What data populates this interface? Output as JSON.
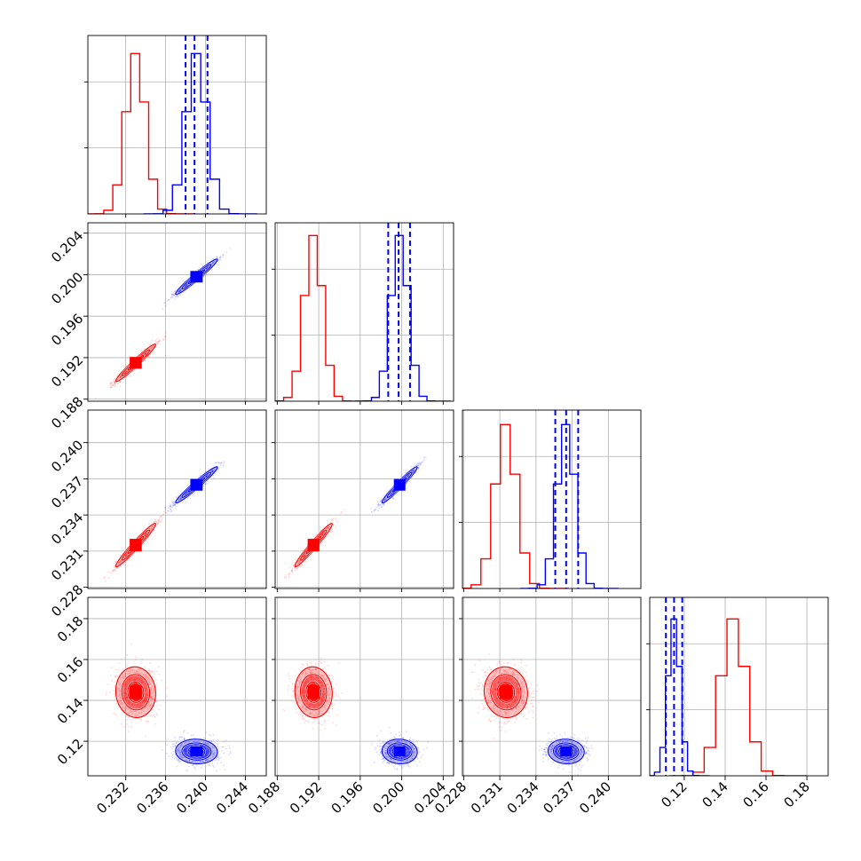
{
  "chart_data": {
    "type": "corner",
    "parameters": [
      {
        "ticks": [
          0.232,
          0.236,
          0.24,
          0.244
        ],
        "tick_labels": [
          "0.232",
          "0.236",
          "0.240",
          "0.244"
        ],
        "range": [
          0.2282,
          0.2461
        ]
      },
      {
        "ticks": [
          0.188,
          0.192,
          0.196,
          0.2,
          0.204
        ],
        "tick_labels": [
          "0.188",
          "0.192",
          "0.196",
          "0.200",
          "0.204"
        ],
        "range": [
          0.1878,
          0.205
        ]
      },
      {
        "ticks": [
          0.228,
          0.231,
          0.234,
          0.237,
          0.24
        ],
        "tick_labels": [
          "0.228",
          "0.231",
          "0.234",
          "0.237",
          "0.240"
        ],
        "range": [
          0.2279,
          0.2427
        ]
      },
      {
        "ticks": [
          0.12,
          0.14,
          0.16,
          0.18
        ],
        "tick_labels": [
          "0.12",
          "0.14",
          "0.16",
          "0.18"
        ],
        "range": [
          0.1031,
          0.1904
        ]
      }
    ],
    "series": [
      {
        "color": "#ff0000",
        "mean": [
          0.233,
          0.1915,
          0.2315,
          0.144
        ],
        "std": [
          0.001,
          0.0009,
          0.0009,
          0.0062
        ],
        "corr": [
          [
            1,
            0.97,
            0.97,
            -0.05
          ],
          [
            0.97,
            1,
            0.97,
            -0.05
          ],
          [
            0.97,
            0.97,
            1,
            -0.05
          ],
          [
            -0.05,
            -0.05,
            -0.05,
            1
          ]
        ],
        "hist_peak": [
          0.9,
          0.93,
          0.92,
          0.88
        ]
      },
      {
        "color": "#0000ff",
        "mean": [
          0.2391,
          0.1998,
          0.2365,
          0.115
        ],
        "std": [
          0.00105,
          0.00085,
          0.00075,
          0.003
        ],
        "corr": [
          [
            1,
            0.97,
            0.97,
            -0.05
          ],
          [
            0.97,
            1,
            0.97,
            -0.05
          ],
          [
            0.97,
            0.97,
            1,
            -0.05
          ],
          [
            -0.05,
            -0.05,
            -0.05,
            1
          ]
        ],
        "hist_peak": [
          0.9,
          0.93,
          0.92,
          0.88
        ],
        "quantiles": [
          [
            0.238,
            0.2389,
            0.2402
          ],
          [
            0.1987,
            0.1997,
            0.2008
          ],
          [
            0.2356,
            0.2365,
            0.2375
          ],
          [
            0.111,
            0.115,
            0.119
          ]
        ]
      }
    ],
    "grid": true,
    "hist_ylabels_shown": false
  }
}
